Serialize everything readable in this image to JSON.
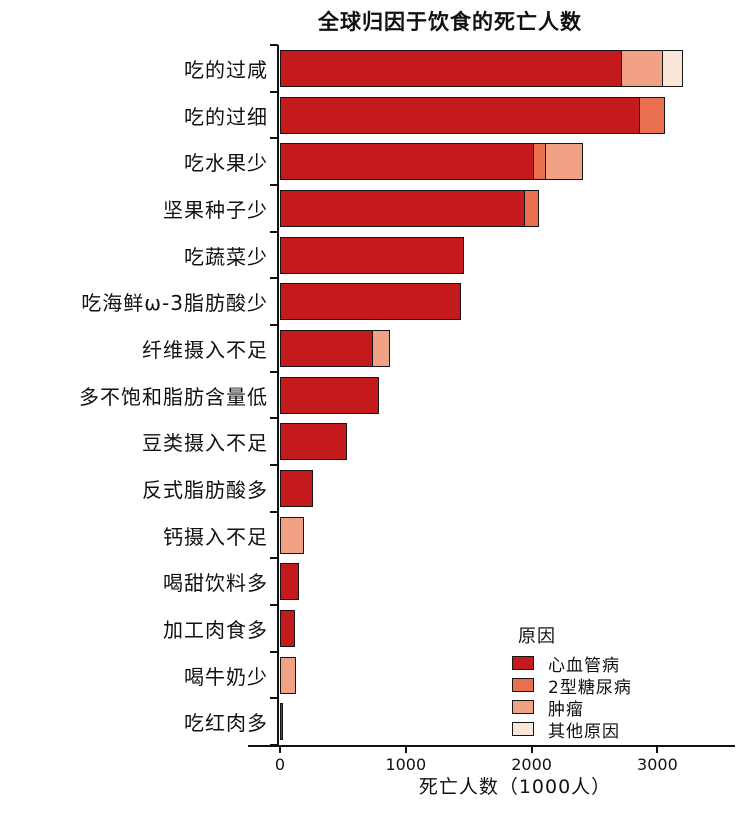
{
  "title": "全球归因于饮食的死亡人数",
  "xlabel": "死亡人数（1000人）",
  "legend": {
    "title": "原因",
    "items": [
      {
        "label": "心血管病",
        "color": "#C41A1D"
      },
      {
        "label": "2型糖尿病",
        "color": "#E8704E"
      },
      {
        "label": "肿瘤",
        "color": "#F2A284"
      },
      {
        "label": "其他原因",
        "color": "#FAE6D8"
      }
    ]
  },
  "chart_data": {
    "type": "bar",
    "orientation": "horizontal",
    "stacked": true,
    "title": "全球归因于饮食的死亡人数",
    "xlabel": "死亡人数（1000人）",
    "unit": "deaths (thousands)",
    "xlim": [
      0,
      3300
    ],
    "x_ticks": [
      0,
      1000,
      2000,
      3000
    ],
    "x_tick_labels": [
      "0",
      "1000",
      "2000",
      "3000"
    ],
    "grid": false,
    "legend_position": "inside-bottom-right",
    "categories": [
      "吃的过咸",
      "吃的过细",
      "吃水果少",
      "坚果种子少",
      "吃蔬菜少",
      "吃海鲜ω-3脂肪酸少",
      "纤维摄入不足",
      "多不饱和脂肪含量低",
      "豆类摄入不足",
      "反式脂肪酸多",
      "钙摄入不足",
      "喝甜饮料多",
      "加工肉食多",
      "喝牛奶少",
      "吃红肉多"
    ],
    "series": [
      {
        "name": "心血管病",
        "color": "#C41A1D",
        "values": [
          2720,
          2870,
          2020,
          1950,
          1460,
          1440,
          740,
          790,
          530,
          260,
          0,
          150,
          115,
          0,
          25
        ]
      },
      {
        "name": "2型糖尿病",
        "color": "#E8704E",
        "values": [
          0,
          190,
          100,
          110,
          0,
          0,
          0,
          0,
          0,
          0,
          0,
          0,
          0,
          0,
          0
        ]
      },
      {
        "name": "肿瘤",
        "color": "#F2A284",
        "values": [
          330,
          0,
          290,
          0,
          0,
          0,
          130,
          0,
          0,
          0,
          190,
          0,
          0,
          130,
          0
        ]
      },
      {
        "name": "其他原因",
        "color": "#FAE6D8",
        "values": [
          150,
          0,
          0,
          0,
          0,
          0,
          0,
          0,
          0,
          0,
          0,
          0,
          0,
          0,
          0
        ]
      }
    ],
    "totals": [
      3200,
      3060,
      2410,
      2060,
      1460,
      1440,
      870,
      790,
      530,
      260,
      190,
      150,
      115,
      130,
      25
    ]
  }
}
